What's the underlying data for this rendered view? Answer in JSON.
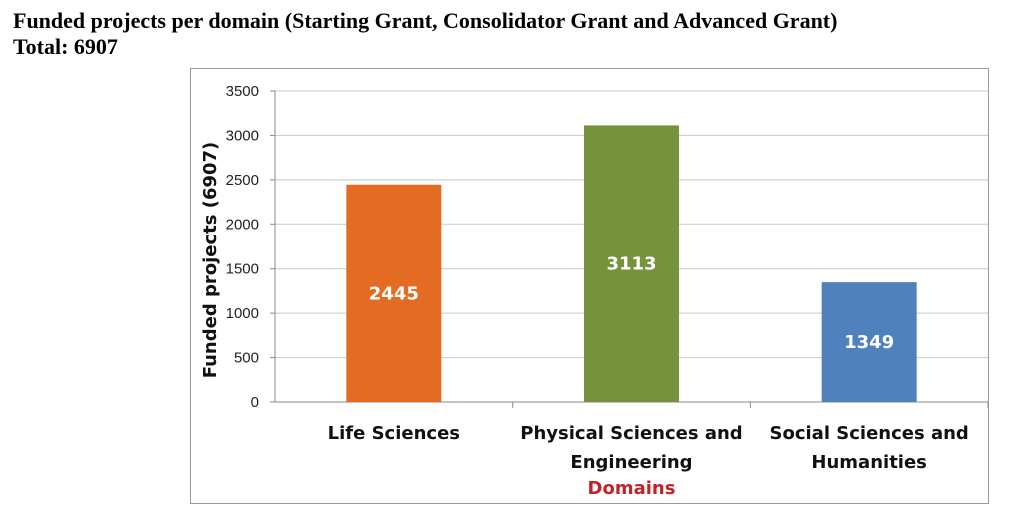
{
  "header": {
    "title_line1": "Funded projects per domain (Starting Grant, Consolidator Grant and Advanced Grant)",
    "title_line2": "Total: 6907"
  },
  "chart_data": {
    "type": "bar",
    "categories": [
      [
        "Life Sciences"
      ],
      [
        "Physical Sciences and",
        "Engineering"
      ],
      [
        "Social Sciences and",
        "Humanities"
      ]
    ],
    "values": [
      2445,
      3113,
      1349
    ],
    "colors": [
      "#e46c22",
      "#76933c",
      "#4f81bd"
    ],
    "data_labels": [
      "2445",
      "3113",
      "1349"
    ],
    "ylabel": "Funded projects (6907)",
    "xlabel": "Domains",
    "ylim": [
      0,
      3500
    ],
    "yticks": [
      0,
      500,
      1000,
      1500,
      2000,
      2500,
      3000,
      3500
    ],
    "grid": true,
    "legend": "none"
  }
}
